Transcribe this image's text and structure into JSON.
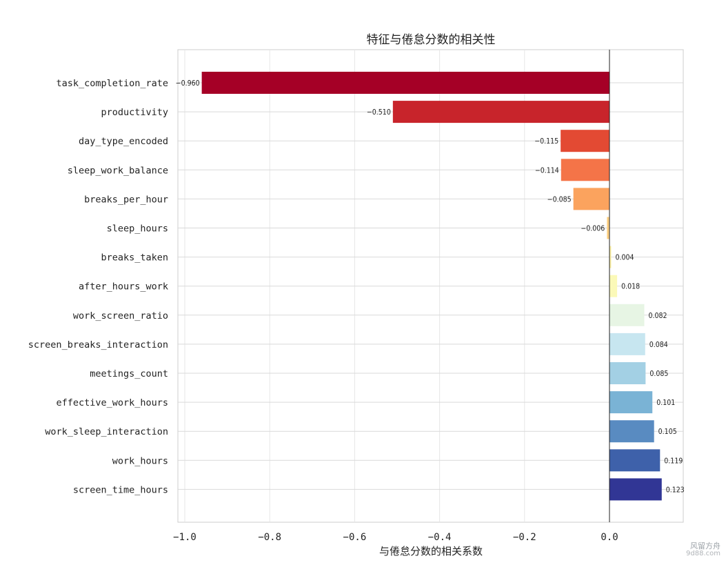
{
  "chart_data": {
    "type": "bar",
    "orientation": "horizontal",
    "title": "特征与倦怠分数的相关性",
    "xlabel": "与倦怠分数的相关系数",
    "ylabel": "",
    "xlim": [
      -1.0,
      0.15
    ],
    "xticks": [
      -1.0,
      -0.8,
      -0.6,
      -0.4,
      -0.2,
      0.0
    ],
    "xtick_labels": [
      "−1.0",
      "−0.8",
      "−0.6",
      "−0.4",
      "−0.2",
      "0.0"
    ],
    "grid": true,
    "legend": "none",
    "categories": [
      "task_completion_rate",
      "productivity",
      "day_type_encoded",
      "sleep_work_balance",
      "breaks_per_hour",
      "sleep_hours",
      "breaks_taken",
      "after_hours_work",
      "work_screen_ratio",
      "screen_breaks_interaction",
      "meetings_count",
      "effective_work_hours",
      "work_sleep_interaction",
      "work_hours",
      "screen_time_hours"
    ],
    "values": [
      -0.96,
      -0.51,
      -0.115,
      -0.114,
      -0.085,
      -0.006,
      0.004,
      0.018,
      0.082,
      0.084,
      0.085,
      0.101,
      0.105,
      0.119,
      0.123
    ],
    "value_labels": [
      "−0.960",
      "−0.510",
      "−0.115",
      "−0.114",
      "−0.085",
      "−0.006",
      "0.004",
      "0.018",
      "0.082",
      "0.084",
      "0.085",
      "0.101",
      "0.105",
      "0.119",
      "0.123"
    ],
    "colors": [
      "#a50026",
      "#c8242b",
      "#e34a33",
      "#f47448",
      "#fba35e",
      "#fdcf82",
      "#fef1a6",
      "#fbf9b8",
      "#e7f5e4",
      "#c7e6f0",
      "#a3d0e4",
      "#7ab3d5",
      "#598bc1",
      "#3e61aa",
      "#313695"
    ]
  },
  "watermark": {
    "line1": "风留方舟",
    "line2": "9d88.com"
  }
}
